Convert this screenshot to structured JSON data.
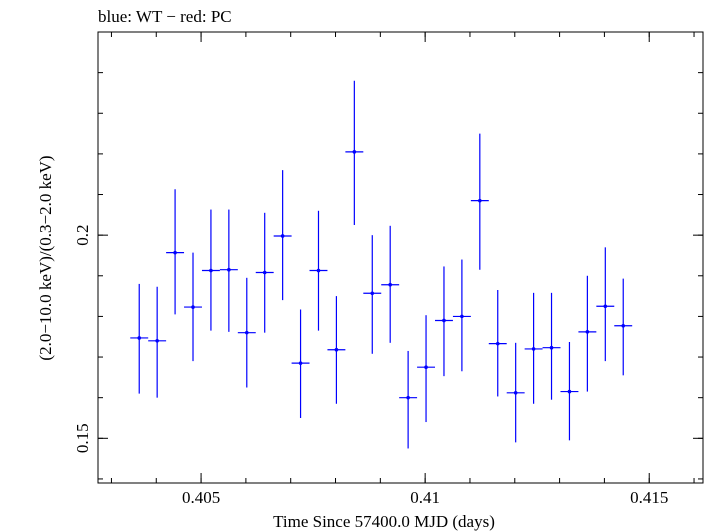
{
  "chart_data": {
    "type": "scatter",
    "title": "blue: WT − red: PC",
    "xlabel": "Time Since 57400.0 MJD (days)",
    "ylabel": "(2.0−10.0 keV)/(0.3−2.0 keV)",
    "xlim": [
      0.4027,
      0.4162
    ],
    "ylim": [
      0.139,
      0.25
    ],
    "xticks": [
      0.405,
      0.41,
      0.415
    ],
    "xtick_labels": [
      "0.405",
      "0.41",
      "0.415"
    ],
    "yticks": [
      0.15,
      0.2
    ],
    "ytick_labels": [
      "0.15",
      "0.2"
    ],
    "grid": false,
    "series": [
      {
        "color": "#0000ff",
        "points": [
          {
            "x": 0.40362,
            "y": 0.1747,
            "xerr": 0.0002,
            "ylo": 0.161,
            "yhi": 0.188
          },
          {
            "x": 0.40402,
            "y": 0.174,
            "xerr": 0.0002,
            "ylo": 0.16,
            "yhi": 0.1873
          },
          {
            "x": 0.40442,
            "y": 0.1957,
            "xerr": 0.0002,
            "ylo": 0.1805,
            "yhi": 0.2113
          },
          {
            "x": 0.40482,
            "y": 0.1823,
            "xerr": 0.0002,
            "ylo": 0.169,
            "yhi": 0.1957
          },
          {
            "x": 0.40522,
            "y": 0.1913,
            "xerr": 0.0002,
            "ylo": 0.1765,
            "yhi": 0.2063
          },
          {
            "x": 0.40562,
            "y": 0.1915,
            "xerr": 0.0002,
            "ylo": 0.1762,
            "yhi": 0.2063
          },
          {
            "x": 0.40602,
            "y": 0.176,
            "xerr": 0.0002,
            "ylo": 0.1625,
            "yhi": 0.1895
          },
          {
            "x": 0.40642,
            "y": 0.1908,
            "xerr": 0.0002,
            "ylo": 0.176,
            "yhi": 0.2055
          },
          {
            "x": 0.40682,
            "y": 0.1998,
            "xerr": 0.0002,
            "ylo": 0.184,
            "yhi": 0.216
          },
          {
            "x": 0.40722,
            "y": 0.1685,
            "xerr": 0.0002,
            "ylo": 0.155,
            "yhi": 0.1817
          },
          {
            "x": 0.40762,
            "y": 0.1913,
            "xerr": 0.0002,
            "ylo": 0.1765,
            "yhi": 0.206
          },
          {
            "x": 0.40802,
            "y": 0.1718,
            "xerr": 0.0002,
            "ylo": 0.1585,
            "yhi": 0.185
          },
          {
            "x": 0.40842,
            "y": 0.2205,
            "xerr": 0.0002,
            "ylo": 0.2025,
            "yhi": 0.238
          },
          {
            "x": 0.40882,
            "y": 0.1857,
            "xerr": 0.0002,
            "ylo": 0.1708,
            "yhi": 0.2
          },
          {
            "x": 0.40922,
            "y": 0.1878,
            "xerr": 0.0002,
            "ylo": 0.1735,
            "yhi": 0.2023
          },
          {
            "x": 0.40962,
            "y": 0.16,
            "xerr": 0.0002,
            "ylo": 0.1475,
            "yhi": 0.1715
          },
          {
            "x": 0.41002,
            "y": 0.1675,
            "xerr": 0.0002,
            "ylo": 0.154,
            "yhi": 0.1803
          },
          {
            "x": 0.41042,
            "y": 0.179,
            "xerr": 0.0002,
            "ylo": 0.1653,
            "yhi": 0.1923
          },
          {
            "x": 0.41082,
            "y": 0.18,
            "xerr": 0.0002,
            "ylo": 0.1665,
            "yhi": 0.194
          },
          {
            "x": 0.41122,
            "y": 0.2085,
            "xerr": 0.0002,
            "ylo": 0.1915,
            "yhi": 0.225
          },
          {
            "x": 0.41162,
            "y": 0.1733,
            "xerr": 0.0002,
            "ylo": 0.1603,
            "yhi": 0.1865
          },
          {
            "x": 0.41202,
            "y": 0.1612,
            "xerr": 0.0002,
            "ylo": 0.149,
            "yhi": 0.1735
          },
          {
            "x": 0.41242,
            "y": 0.172,
            "xerr": 0.0002,
            "ylo": 0.1585,
            "yhi": 0.1858
          },
          {
            "x": 0.41282,
            "y": 0.1723,
            "xerr": 0.0002,
            "ylo": 0.1595,
            "yhi": 0.1858
          },
          {
            "x": 0.41322,
            "y": 0.1615,
            "xerr": 0.0002,
            "ylo": 0.1495,
            "yhi": 0.1737
          },
          {
            "x": 0.41362,
            "y": 0.1762,
            "xerr": 0.0002,
            "ylo": 0.1615,
            "yhi": 0.19
          },
          {
            "x": 0.41402,
            "y": 0.1825,
            "xerr": 0.0002,
            "ylo": 0.169,
            "yhi": 0.197
          },
          {
            "x": 0.41442,
            "y": 0.1777,
            "xerr": 0.0002,
            "ylo": 0.1655,
            "yhi": 0.1893
          }
        ]
      }
    ]
  }
}
